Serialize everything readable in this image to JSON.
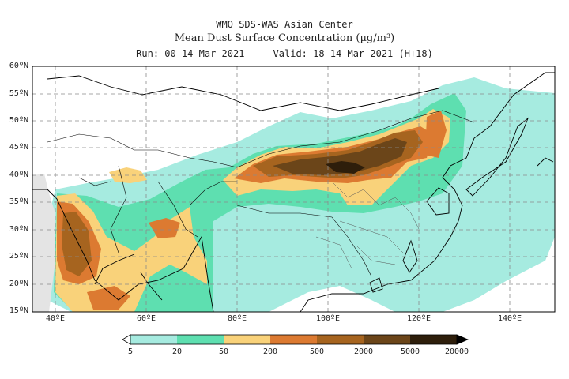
{
  "title": {
    "line1": "WMO SDS-WAS Asian Center",
    "line2": "Mean Dust Surface Concentration (µg/m³)",
    "line3": "Run: 00 14 Mar 2021     Valid: 18 14 Mar 2021 (H+18)"
  },
  "map": {
    "extent": {
      "lon": [
        35,
        150
      ],
      "lat": [
        15,
        60
      ]
    },
    "lat_ticks": [
      "15ºN",
      "20ºN",
      "25ºN",
      "30ºN",
      "35ºN",
      "40ºN",
      "45ºN",
      "50ºN",
      "55ºN",
      "60ºN"
    ],
    "lon_ticks": [
      "40ºE",
      "60ºE",
      "80ºE",
      "100ºE",
      "120ºE",
      "140ºE"
    ],
    "grid": "dashed",
    "colors": {
      "land_missing": "#e4e4e4",
      "c5_20": "#a6ebe0",
      "c20_50": "#5edfb0",
      "c50_200": "#f9d27a",
      "c200_500": "#dc7a31",
      "c500_2000": "#a6641f",
      "c2000_5000": "#6b4519",
      "c5000_20000": "#2e1e0b"
    }
  },
  "colorbar": {
    "labels": [
      "5",
      "20",
      "50",
      "200",
      "500",
      "2000",
      "5000",
      "20000"
    ],
    "colors": [
      "#a6ebe0",
      "#5edfb0",
      "#f9d27a",
      "#dc7a31",
      "#a6641f",
      "#6b4519",
      "#2e1e0b"
    ],
    "under_color": "#ffffff",
    "over_color": "#000000"
  }
}
